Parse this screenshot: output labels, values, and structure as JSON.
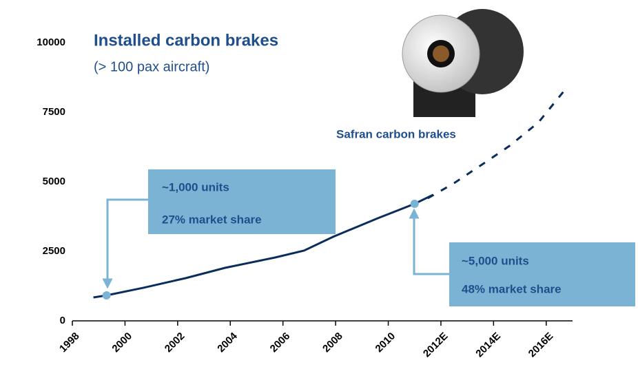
{
  "chart_data": {
    "type": "line",
    "title": "Installed carbon brakes",
    "subtitle": "(> 100 pax aircraft)",
    "series": [
      {
        "color": "#0b2d5c",
        "style": "solid",
        "x": [
          1998.8,
          1999.3,
          2000.7,
          2002.3,
          2003.8,
          2005.7,
          2006.8,
          2007.9,
          2009.6,
          2011.0,
          2011.7
        ],
        "values": [
          842,
          916,
          1190,
          1535,
          1906,
          2277,
          2525,
          3020,
          3688,
          4208,
          4530
        ]
      },
      {
        "color": "#0b2d5c",
        "style": "dashed",
        "x": [
          2011.5,
          2012.5,
          2013.6,
          2014.6,
          2015.7,
          2016.7
        ],
        "values": [
          4406,
          4950,
          5644,
          6287,
          7129,
          8292
        ]
      }
    ],
    "xlim": [
      1998,
      2017
    ],
    "xticks": [
      1998,
      2000,
      2002,
      2004,
      2006,
      2008,
      2010,
      {
        "value": 2012,
        "label": "2012E"
      },
      {
        "value": 2014,
        "label": "2014E"
      },
      {
        "value": 2016,
        "label": "2016E"
      }
    ],
    "ylim": [
      0,
      10000
    ],
    "yticks": [
      0,
      2500,
      5000,
      7500,
      10000
    ],
    "annotations": [
      "Safran carbon brakes",
      "~1,000 units",
      "27% market share",
      "~5,000 units",
      "48% market share"
    ]
  }
}
